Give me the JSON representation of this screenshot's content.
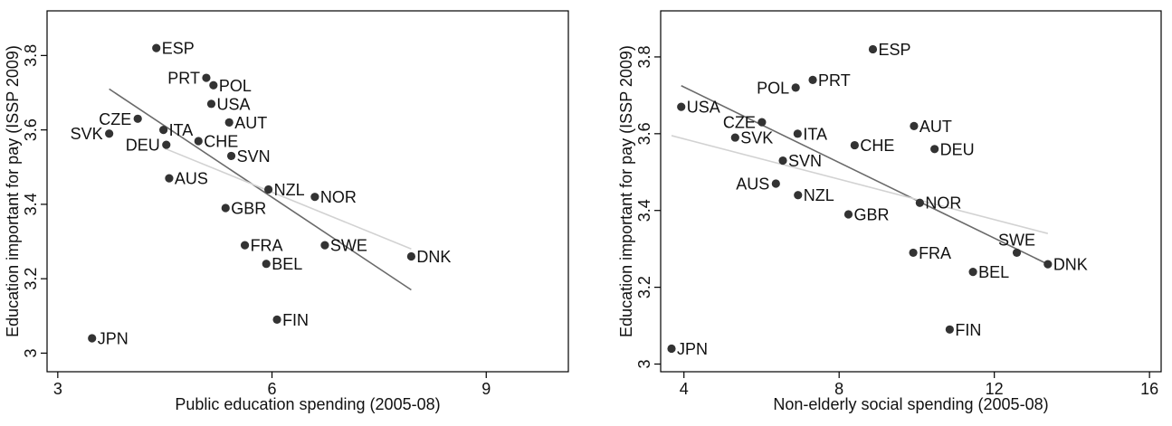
{
  "chart_data": [
    {
      "type": "scatter",
      "xlabel": "Public education spending (2005-08)",
      "ylabel": "Education important for pay (ISSP 2009)",
      "xlim": [
        2.85,
        10.15
      ],
      "ylim": [
        2.95,
        3.92
      ],
      "xticks": [
        3,
        6,
        9
      ],
      "yticks": [
        3,
        3.2,
        3.4,
        3.6,
        3.8
      ],
      "x_tick_labels": [
        "3",
        "6",
        "9"
      ],
      "y_tick_labels": [
        "3",
        "3.2",
        "3.4",
        "3.6",
        "3.8"
      ],
      "points": [
        {
          "label": "ESP",
          "x": 4.38,
          "y": 3.82
        },
        {
          "label": "PRT",
          "x": 5.08,
          "y": 3.74
        },
        {
          "label": "POL",
          "x": 5.18,
          "y": 3.72
        },
        {
          "label": "USA",
          "x": 5.15,
          "y": 3.67
        },
        {
          "label": "CZE",
          "x": 4.12,
          "y": 3.63
        },
        {
          "label": "ITA",
          "x": 4.48,
          "y": 3.6
        },
        {
          "label": "SVK",
          "x": 3.72,
          "y": 3.59
        },
        {
          "label": "DEU",
          "x": 4.52,
          "y": 3.56
        },
        {
          "label": "CHE",
          "x": 4.97,
          "y": 3.57
        },
        {
          "label": "AUT",
          "x": 5.4,
          "y": 3.62
        },
        {
          "label": "SVN",
          "x": 5.43,
          "y": 3.53
        },
        {
          "label": "AUS",
          "x": 4.56,
          "y": 3.47
        },
        {
          "label": "NZL",
          "x": 5.95,
          "y": 3.44
        },
        {
          "label": "NOR",
          "x": 6.6,
          "y": 3.42
        },
        {
          "label": "GBR",
          "x": 5.35,
          "y": 3.39
        },
        {
          "label": "FRA",
          "x": 5.62,
          "y": 3.29
        },
        {
          "label": "SWE",
          "x": 6.74,
          "y": 3.29
        },
        {
          "label": "BEL",
          "x": 5.92,
          "y": 3.24
        },
        {
          "label": "DNK",
          "x": 7.95,
          "y": 3.26
        },
        {
          "label": "FIN",
          "x": 6.07,
          "y": 3.09
        },
        {
          "label": "JPN",
          "x": 3.48,
          "y": 3.04
        }
      ],
      "label_side": {
        "PRT": "left",
        "CZE": "left",
        "SVK": "left",
        "DEU": "left"
      },
      "fit_lines": [
        {
          "style": "dark",
          "x": [
            3.72,
            7.95
          ],
          "y": [
            3.71,
            3.17
          ]
        },
        {
          "style": "light",
          "x": [
            4.5,
            7.95
          ],
          "y": [
            3.55,
            3.28
          ]
        }
      ]
    },
    {
      "type": "scatter",
      "xlabel": "Non-elderly social spending (2005-08)",
      "ylabel": "Education important for pay (ISSP 2009)",
      "xlim": [
        3.4,
        16.3
      ],
      "ylim": [
        2.98,
        3.92
      ],
      "xticks": [
        4,
        8,
        12,
        16
      ],
      "yticks": [
        3,
        3.2,
        3.4,
        3.6,
        3.8
      ],
      "x_tick_labels": [
        "4",
        "8",
        "12",
        "16"
      ],
      "y_tick_labels": [
        "3",
        "3.2",
        "3.4",
        "3.6",
        "3.8"
      ],
      "points": [
        {
          "label": "ESP",
          "x": 8.87,
          "y": 3.82
        },
        {
          "label": "PRT",
          "x": 7.32,
          "y": 3.74
        },
        {
          "label": "POL",
          "x": 6.88,
          "y": 3.72
        },
        {
          "label": "USA",
          "x": 3.93,
          "y": 3.67
        },
        {
          "label": "CZE",
          "x": 6.01,
          "y": 3.63
        },
        {
          "label": "ITA",
          "x": 6.93,
          "y": 3.6
        },
        {
          "label": "SVK",
          "x": 5.32,
          "y": 3.59
        },
        {
          "label": "AUT",
          "x": 9.93,
          "y": 3.62
        },
        {
          "label": "CHE",
          "x": 8.4,
          "y": 3.57
        },
        {
          "label": "DEU",
          "x": 10.46,
          "y": 3.56
        },
        {
          "label": "SVN",
          "x": 6.55,
          "y": 3.53
        },
        {
          "label": "AUS",
          "x": 6.37,
          "y": 3.47
        },
        {
          "label": "NZL",
          "x": 6.94,
          "y": 3.44
        },
        {
          "label": "NOR",
          "x": 10.08,
          "y": 3.42
        },
        {
          "label": "GBR",
          "x": 8.24,
          "y": 3.39
        },
        {
          "label": "FRA",
          "x": 9.91,
          "y": 3.29
        },
        {
          "label": "SWE",
          "x": 12.58,
          "y": 3.29
        },
        {
          "label": "BEL",
          "x": 11.45,
          "y": 3.24
        },
        {
          "label": "DNK",
          "x": 13.38,
          "y": 3.26
        },
        {
          "label": "FIN",
          "x": 10.85,
          "y": 3.09
        },
        {
          "label": "JPN",
          "x": 3.68,
          "y": 3.04
        }
      ],
      "label_side": {
        "POL": "left",
        "CZE": "left",
        "AUS": "left",
        "SWE": "above"
      },
      "fit_lines": [
        {
          "style": "dark",
          "x": [
            3.93,
            13.38
          ],
          "y": [
            3.725,
            3.26
          ]
        },
        {
          "style": "light",
          "x": [
            3.68,
            13.38
          ],
          "y": [
            3.595,
            3.34
          ]
        }
      ]
    }
  ],
  "colors": {
    "point": "#333333",
    "fit_dark": "#6a6a6a",
    "fit_light": "#d2d2d2",
    "frame": "#000000",
    "text": "#111111"
  }
}
